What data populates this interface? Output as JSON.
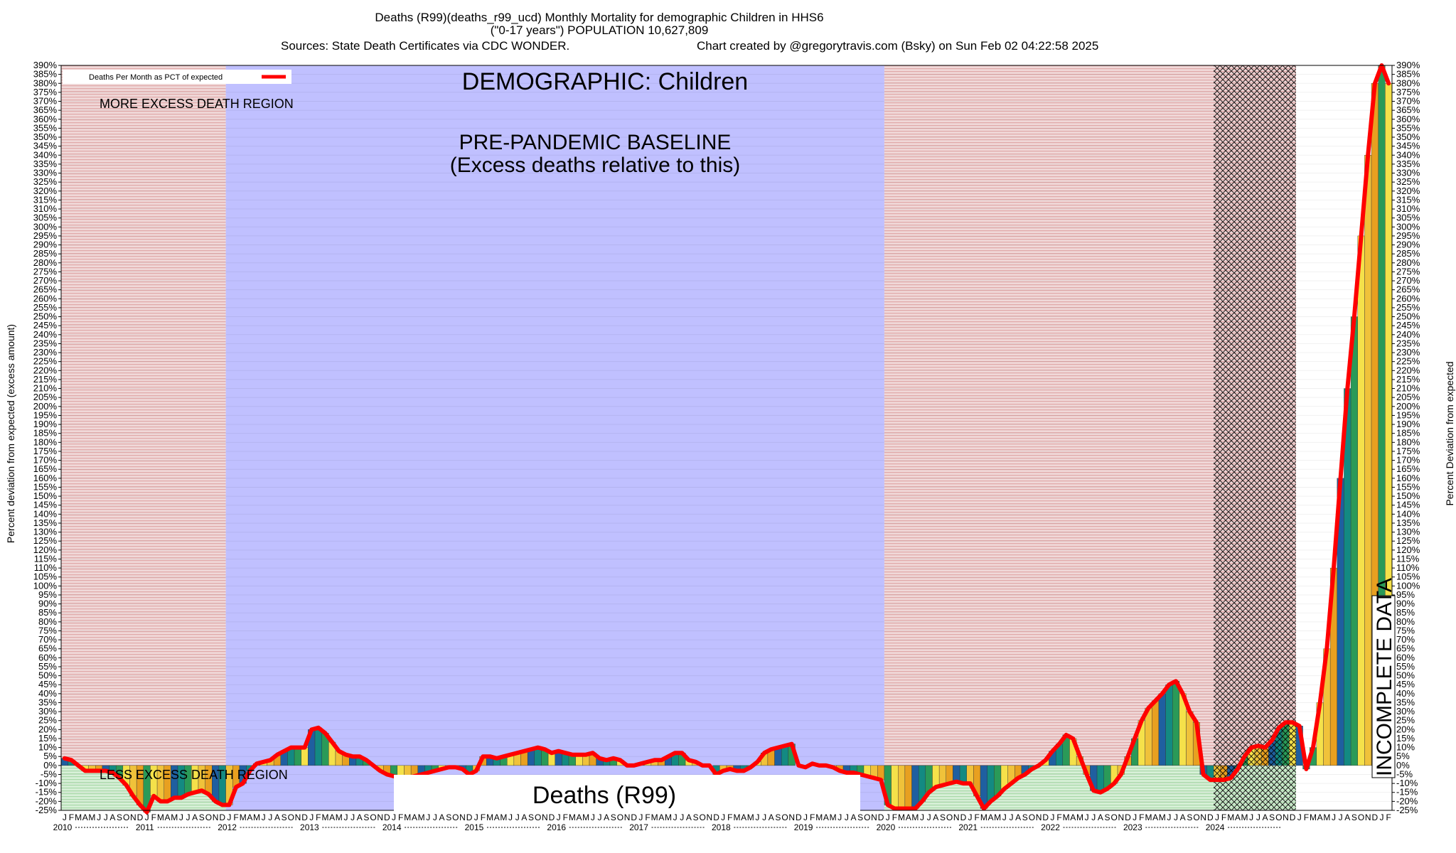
{
  "header": {
    "title_line1": "Deaths (R99)(deaths_r99_ucd) Monthly Mortality for demographic Children in HHS6",
    "title_line2": "(\"0-17 years\") POPULATION 10,627,809",
    "sources": "Sources: State Death Certificates via CDC WONDER.",
    "credit": "Chart created by @gregorytravis.com (Bsky) on Sun Feb 02 04:22:58 2025"
  },
  "annotations": {
    "demographic": "DEMOGRAPHIC: Children",
    "more_excess": "MORE EXCESS DEATH REGION",
    "less_excess": "LESS EXCESS DEATH REGION",
    "baseline_line1": "PRE-PANDEMIC BASELINE",
    "baseline_line2": "(Excess deaths relative to this)",
    "cause_box": "Deaths (R99)",
    "incomplete": "INCOMPLETE DATA"
  },
  "legend": {
    "label": "Deaths Per Month as PCT of expected",
    "position": "top-left"
  },
  "colors": {
    "line": "#ff0000",
    "baseline_region": "#c0c0ff",
    "pink_region": "#e8c8c8",
    "green_region": "#c8e8c8",
    "incomplete_hatch": "#000000",
    "bar_palette": [
      "#1f5fa0",
      "#138a82",
      "#2a9a58",
      "#f5e14a",
      "#f0c23a",
      "#e8a020"
    ]
  },
  "chart_data": {
    "type": "bar",
    "title": "Deaths (R99)(deaths_r99_ucd) Monthly Mortality for demographic Children in HHS6",
    "ylabel": "Percent deviation from expected (excess amount)",
    "ylabel_right": "Percent Deviation from expected",
    "ylim": [
      -25,
      390
    ],
    "ytick_step": 5,
    "tick_suffix": "%",
    "grid": true,
    "month_letters": [
      "J",
      "F",
      "M",
      "A",
      "M",
      "J",
      "J",
      "A",
      "S",
      "O",
      "N",
      "D"
    ],
    "years": [
      "2010",
      "2011",
      "2012",
      "2013",
      "2014",
      "2015",
      "2016",
      "2017",
      "2018",
      "2019",
      "2020",
      "2021",
      "2022",
      "2023",
      "2024"
    ],
    "start": "2010-01",
    "regions": [
      {
        "from": "2010-01",
        "to": "2011-12",
        "kind": "pink"
      },
      {
        "from": "2012-01",
        "to": "2019-12",
        "kind": "baseline"
      },
      {
        "from": "2020-01",
        "to": "2023-12",
        "kind": "pink"
      },
      {
        "from": "2024-01",
        "to": "2024-12",
        "kind": "incomplete"
      }
    ],
    "series": [
      {
        "values": [
          4,
          3,
          0,
          -3,
          -3,
          -3,
          -3,
          -4,
          -7,
          -11,
          -17,
          -22,
          -26,
          -17,
          -20,
          -20,
          -18,
          -18,
          -16,
          -15,
          -14,
          -16,
          -20,
          -22,
          -22,
          -12,
          -10,
          -3,
          1,
          2,
          3,
          6,
          8,
          10,
          10,
          10,
          20,
          21,
          18,
          13,
          8,
          6,
          5,
          5,
          3,
          0,
          -3,
          -5,
          -6,
          -7,
          -7,
          -6,
          -5,
          -4,
          -3,
          -2,
          -1,
          -1,
          -2,
          -5,
          -3,
          5,
          5,
          4,
          5,
          6,
          7,
          8,
          9,
          10,
          9,
          7,
          8,
          7,
          6,
          6,
          6,
          7,
          4,
          3,
          4,
          3,
          0,
          0,
          1,
          2,
          3,
          3,
          5,
          7,
          7,
          3,
          2,
          0,
          0,
          -5,
          -3,
          -2,
          -3,
          -3,
          -1,
          2,
          7,
          9,
          10,
          11,
          12,
          0,
          -1,
          1,
          0,
          0,
          -1,
          -3,
          -4,
          -4,
          -5,
          -6,
          -7,
          -8,
          -22,
          -24,
          -24,
          -24,
          -24,
          -20,
          -15,
          -12,
          -11,
          -10,
          -9,
          -10,
          -10,
          -17,
          -24,
          -20,
          -17,
          -13,
          -10,
          -7,
          -5,
          -2,
          0,
          3,
          8,
          12,
          17,
          15,
          5,
          -5,
          -14,
          -15,
          -13,
          -10,
          -5,
          5,
          15,
          25,
          32,
          36,
          40,
          45,
          47,
          40,
          30,
          24,
          -5,
          -8,
          -8,
          -8,
          -7,
          -2,
          5,
          10,
          11,
          10,
          14,
          21,
          24,
          24,
          22,
          -2,
          10,
          35,
          65,
          110,
          160,
          210,
          250,
          295,
          340,
          380,
          390,
          380
        ]
      }
    ]
  }
}
